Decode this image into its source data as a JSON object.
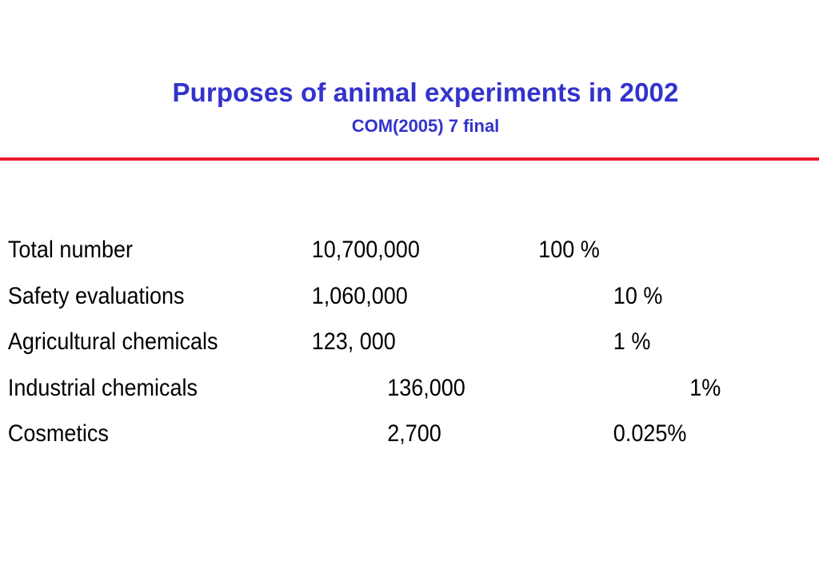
{
  "slide": {
    "title": "Purposes of animal experiments in 2002",
    "subtitle": "COM(2005) 7 final",
    "rule_color": "#e8192c",
    "title_color": "#3333cc",
    "rows": [
      {
        "label": "Total number",
        "count": "10,700,000",
        "percent": "100 %"
      },
      {
        "label": "Safety evaluations",
        "count": "1,060,000",
        "percent": "10 %"
      },
      {
        "label": "Agricultural chemicals",
        "count": "123, 000",
        "percent": "1 %"
      },
      {
        "label": "Industrial chemicals",
        "count": "136,000",
        "percent": "1%"
      },
      {
        "label": "Cosmetics",
        "count": "2,700",
        "percent": "0.025%"
      }
    ]
  }
}
